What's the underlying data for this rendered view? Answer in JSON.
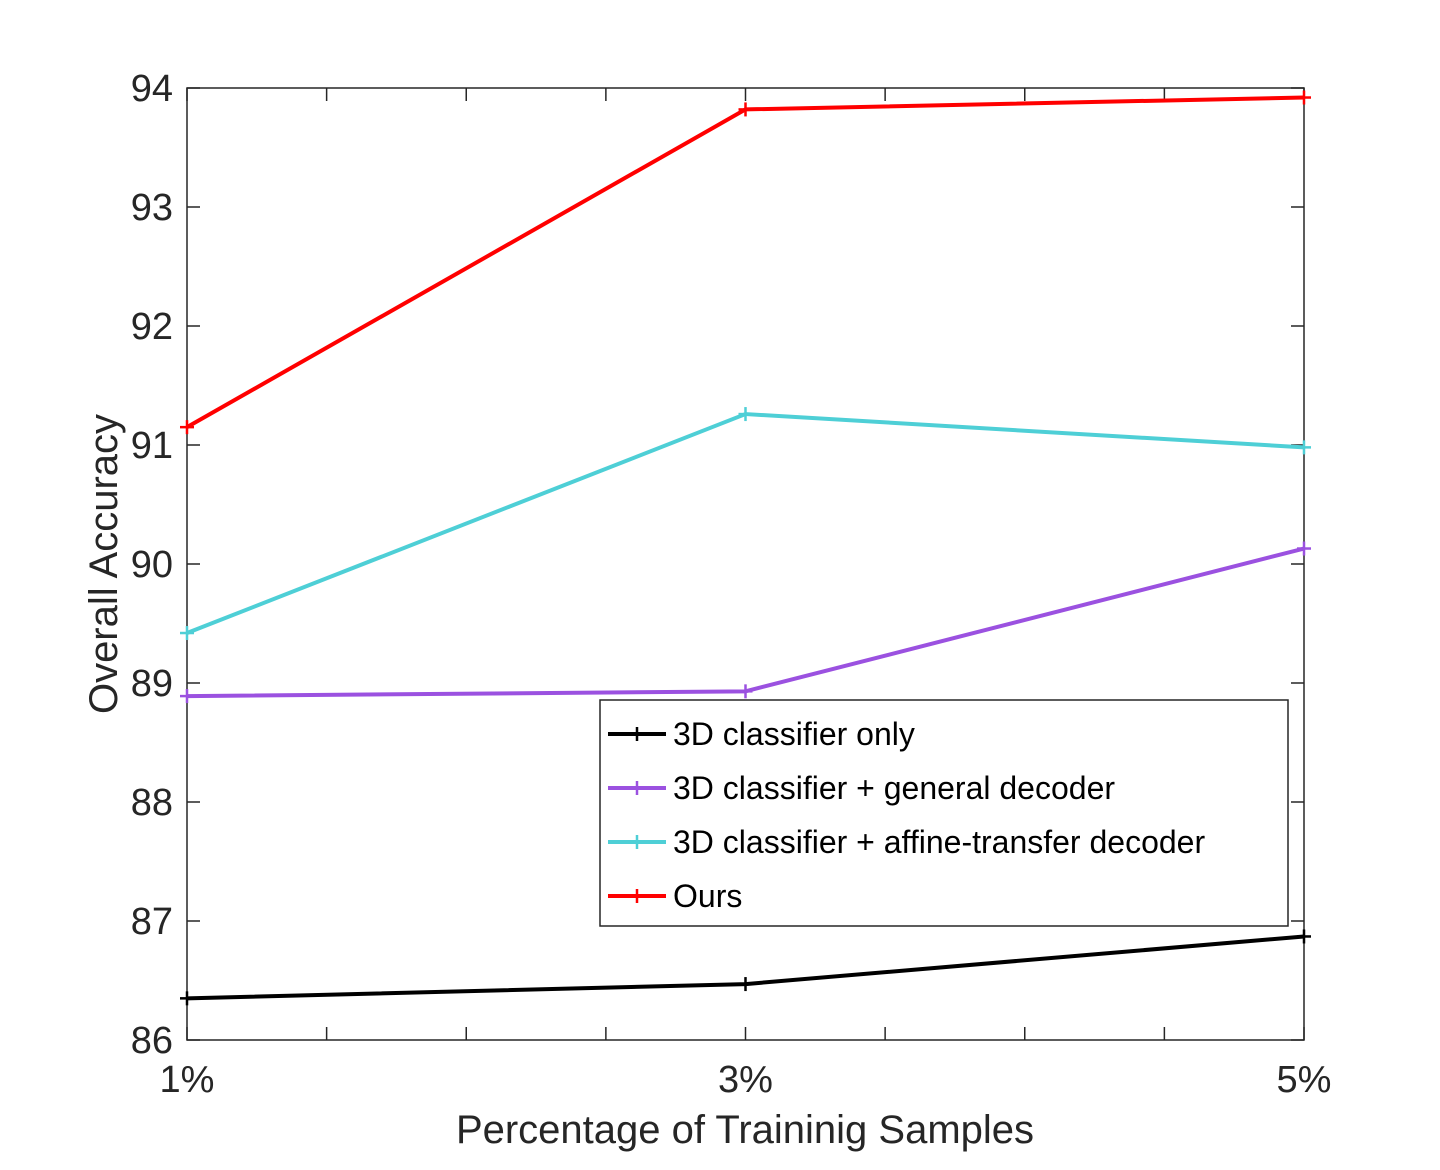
{
  "chart_data": {
    "type": "line",
    "title": "",
    "xlabel": "Percentage of Traininig Samples",
    "ylabel": "Overall Accuracy",
    "categories": [
      "1%",
      "3%",
      "5%"
    ],
    "x": [
      1,
      3,
      5
    ],
    "xlim": [
      1,
      5
    ],
    "ylim": [
      86,
      94
    ],
    "yticks": [
      86,
      87,
      88,
      89,
      90,
      91,
      92,
      93,
      94
    ],
    "y_tick_labels": [
      "86",
      "87",
      "88",
      "89",
      "90",
      "91",
      "92",
      "93",
      "94"
    ],
    "x_minor_ticks": [
      1.5,
      2,
      2.5,
      3.5,
      4,
      4.5
    ],
    "grid": false,
    "legend_position": "bottom-right",
    "series": [
      {
        "name": "3D classifier only",
        "color": "#000000",
        "values": [
          86.35,
          86.47,
          86.87
        ]
      },
      {
        "name": "3D classifier + general decoder",
        "color": "#9b51e0",
        "values": [
          88.89,
          88.93,
          90.13
        ]
      },
      {
        "name": "3D classifier + affine-transfer decoder",
        "color": "#4ecfd6",
        "values": [
          89.42,
          91.26,
          90.98
        ]
      },
      {
        "name": "Ours",
        "color": "#ff0000",
        "values": [
          91.15,
          93.82,
          93.92
        ]
      }
    ]
  }
}
